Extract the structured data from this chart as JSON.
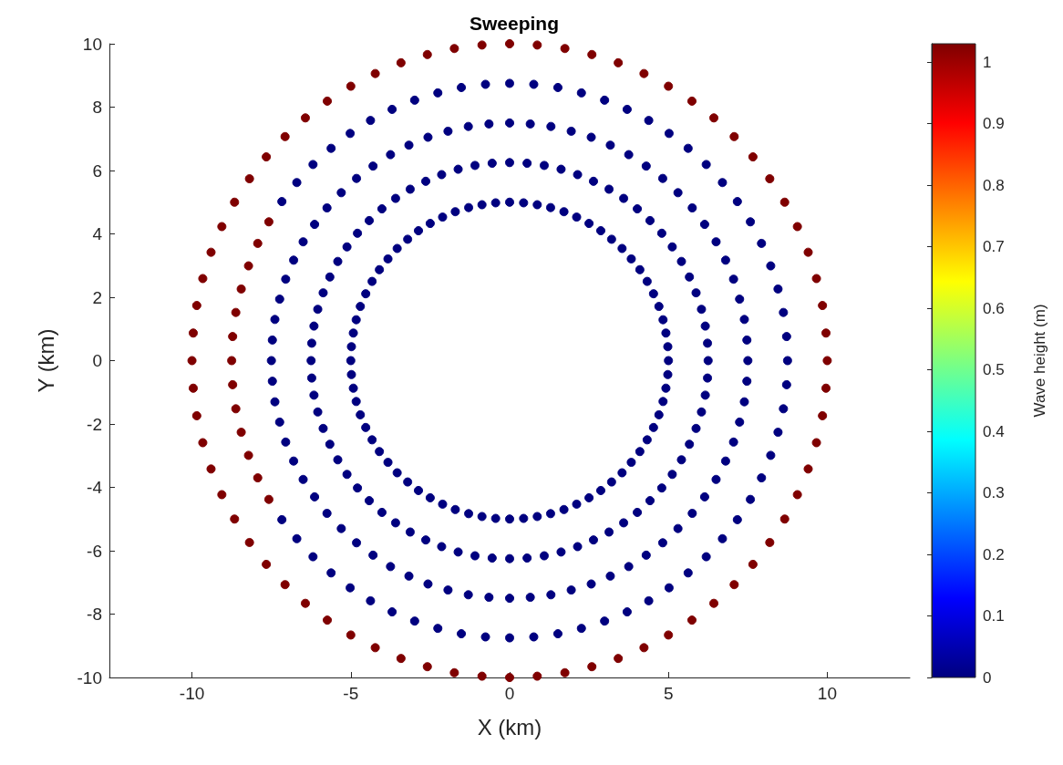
{
  "chart_data": {
    "type": "scatter",
    "title": "Sweeping",
    "xlabel": "X (km)",
    "ylabel": "Y (km)",
    "clabel": "Wave height (m)",
    "xlim": [
      -12.6,
      12.6
    ],
    "xticks": [
      -10,
      -5,
      0,
      5,
      10
    ],
    "ylim": [
      -10,
      10
    ],
    "yticks": [
      -10,
      -8,
      -6,
      -4,
      -2,
      0,
      2,
      4,
      6,
      8,
      10
    ],
    "clim": [
      0,
      1.03
    ],
    "cticks": [
      0,
      0.1,
      0.2,
      0.3,
      0.4,
      0.5,
      0.6,
      0.7,
      0.8,
      0.9,
      1
    ],
    "grid": false,
    "marker": "circle",
    "series": [
      {
        "x": [
          5,
          6.25,
          7.5,
          8.75,
          10
        ],
        "values": [
          0,
          0,
          0,
          0,
          0
        ],
        "cvalues": [
          0,
          0,
          0,
          0,
          1.03
        ],
        "colors": [
          "#00007f",
          "#00007f",
          "#00007f",
          "#00007f",
          "#7f0000"
        ]
      },
      {
        "x": [
          4.98,
          6.23,
          7.47,
          8.72,
          9.96
        ],
        "values": [
          0.44,
          0.55,
          0.65,
          0.76,
          0.87
        ],
        "cvalues": [
          0,
          0,
          0,
          0,
          1.03
        ],
        "colors": [
          "#00007f",
          "#00007f",
          "#00007f",
          "#00007f",
          "#7f0000"
        ]
      },
      {
        "x": [
          4.92,
          6.16,
          7.39,
          8.62,
          9.85
        ],
        "values": [
          0.87,
          1.09,
          1.3,
          1.52,
          1.74
        ],
        "cvalues": [
          0,
          0,
          0,
          0,
          1.03
        ],
        "colors": [
          "#00007f",
          "#00007f",
          "#00007f",
          "#00007f",
          "#7f0000"
        ]
      },
      {
        "x": [
          4.83,
          6.04,
          7.24,
          8.45,
          9.66
        ],
        "values": [
          1.29,
          1.62,
          1.94,
          2.26,
          2.59
        ],
        "cvalues": [
          0,
          0,
          0,
          0,
          1.03
        ],
        "colors": [
          "#00007f",
          "#00007f",
          "#00007f",
          "#00007f",
          "#7f0000"
        ]
      },
      {
        "x": [
          4.7,
          5.87,
          7.05,
          8.22,
          9.4
        ],
        "values": [
          1.71,
          2.14,
          2.57,
          2.99,
          3.42
        ],
        "cvalues": [
          0,
          0,
          0,
          0,
          1.03
        ],
        "colors": [
          "#00007f",
          "#00007f",
          "#00007f",
          "#00007f",
          "#7f0000"
        ]
      },
      {
        "x": [
          4.53,
          5.66,
          6.8,
          7.93,
          9.06
        ],
        "values": [
          2.11,
          2.64,
          3.17,
          3.7,
          4.23
        ],
        "cvalues": [
          0,
          0,
          0,
          0,
          1.03
        ],
        "colors": [
          "#00007f",
          "#00007f",
          "#00007f",
          "#00007f",
          "#7f0000"
        ]
      },
      {
        "x": [
          4.33,
          5.41,
          6.5,
          7.58,
          8.66
        ],
        "values": [
          2.5,
          3.13,
          3.75,
          4.38,
          5
        ],
        "cvalues": [
          0,
          0,
          0,
          0,
          1.03
        ],
        "colors": [
          "#00007f",
          "#00007f",
          "#00007f",
          "#00007f",
          "#7f0000"
        ]
      },
      {
        "x": [
          4.1,
          5.12,
          6.14,
          7.17,
          8.19
        ],
        "values": [
          2.87,
          3.59,
          4.3,
          5.02,
          5.74
        ],
        "cvalues": [
          0,
          0,
          0,
          0,
          1.03
        ],
        "colors": [
          "#00007f",
          "#00007f",
          "#00007f",
          "#00007f",
          "#7f0000"
        ]
      },
      {
        "x": [
          3.83,
          4.79,
          5.75,
          6.7,
          7.66
        ],
        "values": [
          3.21,
          4.02,
          4.82,
          5.62,
          6.43
        ],
        "cvalues": [
          0,
          0,
          0,
          0,
          1.03
        ],
        "colors": [
          "#00007f",
          "#00007f",
          "#00007f",
          "#00007f",
          "#7f0000"
        ]
      },
      {
        "x": [
          3.54,
          4.42,
          5.3,
          6.19,
          7.07
        ],
        "values": [
          3.54,
          4.42,
          5.3,
          6.19,
          7.07
        ],
        "cvalues": [
          0,
          0,
          0,
          0,
          1.03
        ],
        "colors": [
          "#00007f",
          "#00007f",
          "#00007f",
          "#00007f",
          "#7f0000"
        ]
      },
      {
        "x": [
          3.21,
          4.02,
          4.82,
          5.62,
          6.43
        ],
        "values": [
          3.83,
          4.79,
          5.75,
          6.7,
          7.66
        ],
        "cvalues": [
          0,
          0,
          0,
          0,
          1.03
        ],
        "colors": [
          "#00007f",
          "#00007f",
          "#00007f",
          "#00007f",
          "#7f0000"
        ]
      },
      {
        "x": [
          2.87,
          3.59,
          4.3,
          5.02,
          5.74
        ],
        "values": [
          4.1,
          5.12,
          6.14,
          7.17,
          8.19
        ],
        "cvalues": [
          0,
          0,
          0,
          0,
          1.03
        ],
        "colors": [
          "#00007f",
          "#00007f",
          "#00007f",
          "#00007f",
          "#7f0000"
        ]
      },
      {
        "x": [
          2.5,
          3.13,
          3.75,
          4.38,
          5
        ],
        "values": [
          4.33,
          5.41,
          6.5,
          7.58,
          8.66
        ],
        "cvalues": [
          0,
          0,
          0,
          0,
          1.03
        ],
        "colors": [
          "#00007f",
          "#00007f",
          "#00007f",
          "#00007f",
          "#7f0000"
        ]
      },
      {
        "x": [
          2.11,
          2.64,
          3.17,
          3.7,
          4.23
        ],
        "values": [
          4.53,
          5.66,
          6.8,
          7.93,
          9.06
        ],
        "cvalues": [
          0,
          0,
          0,
          0,
          1.03
        ],
        "colors": [
          "#00007f",
          "#00007f",
          "#00007f",
          "#00007f",
          "#7f0000"
        ]
      },
      {
        "x": [
          1.71,
          2.14,
          2.57,
          2.99,
          3.42
        ],
        "values": [
          4.7,
          5.87,
          7.05,
          8.22,
          9.4
        ],
        "cvalues": [
          0,
          0,
          0,
          0,
          1.03
        ],
        "colors": [
          "#00007f",
          "#00007f",
          "#00007f",
          "#00007f",
          "#7f0000"
        ]
      },
      {
        "x": [
          1.29,
          1.62,
          1.94,
          2.26,
          2.59
        ],
        "values": [
          4.83,
          6.04,
          7.24,
          8.45,
          9.66
        ],
        "cvalues": [
          0,
          0,
          0,
          0,
          1.03
        ],
        "colors": [
          "#00007f",
          "#00007f",
          "#00007f",
          "#00007f",
          "#7f0000"
        ]
      },
      {
        "x": [
          0.87,
          1.09,
          1.3,
          1.52,
          1.74
        ],
        "values": [
          4.92,
          6.16,
          7.39,
          8.62,
          9.85
        ],
        "cvalues": [
          0,
          0,
          0,
          0,
          1.03
        ],
        "colors": [
          "#00007f",
          "#00007f",
          "#00007f",
          "#00007f",
          "#7f0000"
        ]
      },
      {
        "x": [
          0.44,
          0.55,
          0.65,
          0.76,
          0.87
        ],
        "values": [
          4.98,
          6.23,
          7.47,
          8.72,
          9.96
        ],
        "cvalues": [
          0,
          0,
          0,
          0,
          1.03
        ],
        "colors": [
          "#00007f",
          "#00007f",
          "#00007f",
          "#00007f",
          "#7f0000"
        ]
      },
      {
        "x": [
          0,
          0,
          0,
          0,
          0
        ],
        "values": [
          5,
          6.25,
          7.5,
          8.75,
          10
        ],
        "cvalues": [
          0,
          0,
          0,
          0,
          1.03
        ],
        "colors": [
          "#00007f",
          "#00007f",
          "#00007f",
          "#00007f",
          "#7f0000"
        ]
      },
      {
        "x": [
          -0.44,
          -0.55,
          -0.65,
          -0.76,
          -0.87
        ],
        "values": [
          4.98,
          6.23,
          7.47,
          8.72,
          9.96
        ],
        "cvalues": [
          0,
          0,
          0,
          0,
          1.03
        ],
        "colors": [
          "#00007f",
          "#00007f",
          "#00007f",
          "#00007f",
          "#7f0000"
        ]
      },
      {
        "x": [
          -0.87,
          -1.09,
          -1.3,
          -1.52,
          -1.74
        ],
        "values": [
          4.92,
          6.16,
          7.39,
          8.62,
          9.85
        ],
        "cvalues": [
          0,
          0,
          0,
          0,
          1.03
        ],
        "colors": [
          "#00007f",
          "#00007f",
          "#00007f",
          "#00007f",
          "#7f0000"
        ]
      },
      {
        "x": [
          -1.29,
          -1.62,
          -1.94,
          -2.26,
          -2.59
        ],
        "values": [
          4.83,
          6.04,
          7.24,
          8.45,
          9.66
        ],
        "cvalues": [
          0,
          0,
          0,
          0,
          1.03
        ],
        "colors": [
          "#00007f",
          "#00007f",
          "#00007f",
          "#00007f",
          "#7f0000"
        ]
      },
      {
        "x": [
          -1.71,
          -2.14,
          -2.57,
          -2.99,
          -3.42
        ],
        "values": [
          4.7,
          5.87,
          7.05,
          8.22,
          9.4
        ],
        "cvalues": [
          0,
          0,
          0,
          0,
          1.03
        ],
        "colors": [
          "#00007f",
          "#00007f",
          "#00007f",
          "#00007f",
          "#7f0000"
        ]
      },
      {
        "x": [
          -2.11,
          -2.64,
          -3.17,
          -3.7,
          -4.23
        ],
        "values": [
          4.53,
          5.66,
          6.8,
          7.93,
          9.06
        ],
        "cvalues": [
          0,
          0,
          0,
          0,
          1.03
        ],
        "colors": [
          "#00007f",
          "#00007f",
          "#00007f",
          "#00007f",
          "#7f0000"
        ]
      },
      {
        "x": [
          -2.5,
          -3.13,
          -3.75,
          -4.38,
          -5
        ],
        "values": [
          4.33,
          5.41,
          6.5,
          7.58,
          8.66
        ],
        "cvalues": [
          0,
          0,
          0,
          0,
          1.03
        ],
        "colors": [
          "#00007f",
          "#00007f",
          "#00007f",
          "#00007f",
          "#7f0000"
        ]
      },
      {
        "x": [
          -2.87,
          -3.59,
          -4.3,
          -5.02,
          -5.74
        ],
        "values": [
          4.1,
          5.12,
          6.14,
          7.17,
          8.19
        ],
        "cvalues": [
          0,
          0,
          0,
          0,
          1.03
        ],
        "colors": [
          "#00007f",
          "#00007f",
          "#00007f",
          "#00007f",
          "#7f0000"
        ]
      },
      {
        "x": [
          -3.21,
          -4.02,
          -4.82,
          -5.62,
          -6.43
        ],
        "values": [
          3.83,
          4.79,
          5.75,
          6.7,
          7.66
        ],
        "cvalues": [
          0,
          0,
          0,
          0,
          1.03
        ],
        "colors": [
          "#00007f",
          "#00007f",
          "#00007f",
          "#00007f",
          "#7f0000"
        ]
      },
      {
        "x": [
          -3.54,
          -4.42,
          -5.3,
          -6.19,
          -7.07
        ],
        "values": [
          3.54,
          4.42,
          5.3,
          6.19,
          7.07
        ],
        "cvalues": [
          0,
          0,
          0,
          0,
          1.03
        ],
        "colors": [
          "#00007f",
          "#00007f",
          "#00007f",
          "#00007f",
          "#7f0000"
        ]
      },
      {
        "x": [
          -3.83,
          -4.79,
          -5.75,
          -6.7,
          -7.66
        ],
        "values": [
          3.21,
          4.02,
          4.82,
          5.62,
          6.43
        ],
        "cvalues": [
          0,
          0,
          0,
          0,
          1.03
        ],
        "colors": [
          "#00007f",
          "#00007f",
          "#00007f",
          "#00007f",
          "#7f0000"
        ]
      },
      {
        "x": [
          -4.1,
          -5.12,
          -6.14,
          -7.17,
          -8.19
        ],
        "values": [
          2.87,
          3.59,
          4.3,
          5.02,
          5.74
        ],
        "cvalues": [
          0,
          0,
          0,
          0,
          1.03
        ],
        "colors": [
          "#00007f",
          "#00007f",
          "#00007f",
          "#00007f",
          "#7f0000"
        ]
      },
      {
        "x": [
          -4.33,
          -5.41,
          -6.5,
          -7.58,
          -8.66
        ],
        "values": [
          2.5,
          3.13,
          3.75,
          4.38,
          5
        ],
        "cvalues": [
          0,
          0,
          0,
          1.03,
          1.03
        ],
        "colors": [
          "#00007f",
          "#00007f",
          "#00007f",
          "#7f0000",
          "#7f0000"
        ]
      },
      {
        "x": [
          -4.53,
          -5.66,
          -6.8,
          -7.93,
          -9.06
        ],
        "values": [
          2.11,
          2.64,
          3.17,
          3.7,
          4.23
        ],
        "cvalues": [
          0,
          0,
          0,
          1.03,
          1.03
        ],
        "colors": [
          "#00007f",
          "#00007f",
          "#00007f",
          "#7f0000",
          "#7f0000"
        ]
      },
      {
        "x": [
          -4.7,
          -5.87,
          -7.05,
          -8.22,
          -9.4
        ],
        "values": [
          1.71,
          2.14,
          2.57,
          2.99,
          3.42
        ],
        "cvalues": [
          0,
          0,
          0,
          1.03,
          1.03
        ],
        "colors": [
          "#00007f",
          "#00007f",
          "#00007f",
          "#7f0000",
          "#7f0000"
        ]
      },
      {
        "x": [
          -4.83,
          -6.04,
          -7.24,
          -8.45,
          -9.66
        ],
        "values": [
          1.29,
          1.62,
          1.94,
          2.26,
          2.59
        ],
        "cvalues": [
          0,
          0,
          0,
          1.03,
          1.03
        ],
        "colors": [
          "#00007f",
          "#00007f",
          "#00007f",
          "#7f0000",
          "#7f0000"
        ]
      },
      {
        "x": [
          -4.92,
          -6.16,
          -7.39,
          -8.62,
          -9.85
        ],
        "values": [
          0.87,
          1.09,
          1.3,
          1.52,
          1.74
        ],
        "cvalues": [
          0,
          0,
          0,
          1.03,
          1.03
        ],
        "colors": [
          "#00007f",
          "#00007f",
          "#00007f",
          "#7f0000",
          "#7f0000"
        ]
      },
      {
        "x": [
          -4.98,
          -6.23,
          -7.47,
          -8.72,
          -9.96
        ],
        "values": [
          0.44,
          0.55,
          0.65,
          0.76,
          0.87
        ],
        "cvalues": [
          0,
          0,
          0,
          1.03,
          1.03
        ],
        "colors": [
          "#00007f",
          "#00007f",
          "#00007f",
          "#7f0000",
          "#7f0000"
        ]
      },
      {
        "x": [
          -5,
          -6.25,
          -7.5,
          -8.75,
          -10
        ],
        "values": [
          0,
          0,
          0,
          0,
          0
        ],
        "cvalues": [
          0,
          0,
          0,
          1.03,
          1.03
        ],
        "colors": [
          "#00007f",
          "#00007f",
          "#00007f",
          "#7f0000",
          "#7f0000"
        ]
      },
      {
        "x": [
          -4.98,
          -6.23,
          -7.47,
          -8.72,
          -9.96
        ],
        "values": [
          -0.44,
          -0.55,
          -0.65,
          -0.76,
          -0.87
        ],
        "cvalues": [
          0,
          0,
          0,
          1.03,
          1.03
        ],
        "colors": [
          "#00007f",
          "#00007f",
          "#00007f",
          "#7f0000",
          "#7f0000"
        ]
      },
      {
        "x": [
          -4.92,
          -6.16,
          -7.39,
          -8.62,
          -9.85
        ],
        "values": [
          -0.87,
          -1.09,
          -1.3,
          -1.52,
          -1.74
        ],
        "cvalues": [
          0,
          0,
          0,
          1.03,
          1.03
        ],
        "colors": [
          "#00007f",
          "#00007f",
          "#00007f",
          "#7f0000",
          "#7f0000"
        ]
      },
      {
        "x": [
          -4.83,
          -6.04,
          -7.24,
          -8.45,
          -9.66
        ],
        "values": [
          -1.29,
          -1.62,
          -1.94,
          -2.26,
          -2.59
        ],
        "cvalues": [
          0,
          0,
          0,
          1.03,
          1.03
        ],
        "colors": [
          "#00007f",
          "#00007f",
          "#00007f",
          "#7f0000",
          "#7f0000"
        ]
      },
      {
        "x": [
          -4.7,
          -5.87,
          -7.05,
          -8.22,
          -9.4
        ],
        "values": [
          -1.71,
          -2.14,
          -2.57,
          -2.99,
          -3.42
        ],
        "cvalues": [
          0,
          0,
          0,
          1.03,
          1.03
        ],
        "colors": [
          "#00007f",
          "#00007f",
          "#00007f",
          "#7f0000",
          "#7f0000"
        ]
      },
      {
        "x": [
          -4.53,
          -5.66,
          -6.8,
          -7.93,
          -9.06
        ],
        "values": [
          -2.11,
          -2.64,
          -3.17,
          -3.7,
          -4.23
        ],
        "cvalues": [
          0,
          0,
          0,
          1.03,
          1.03
        ],
        "colors": [
          "#00007f",
          "#00007f",
          "#00007f",
          "#7f0000",
          "#7f0000"
        ]
      },
      {
        "x": [
          -4.33,
          -5.41,
          -6.5,
          -7.58,
          -8.66
        ],
        "values": [
          -2.5,
          -3.13,
          -3.75,
          -4.38,
          -5
        ],
        "cvalues": [
          0,
          0,
          0,
          1.03,
          1.03
        ],
        "colors": [
          "#00007f",
          "#00007f",
          "#00007f",
          "#7f0000",
          "#7f0000"
        ]
      },
      {
        "x": [
          -4.1,
          -5.12,
          -6.14,
          -7.17,
          -8.19
        ],
        "values": [
          -2.87,
          -3.59,
          -4.3,
          -5.02,
          -5.74
        ],
        "cvalues": [
          0,
          0,
          0,
          0,
          1.03
        ],
        "colors": [
          "#00007f",
          "#00007f",
          "#00007f",
          "#00007f",
          "#7f0000"
        ]
      },
      {
        "x": [
          -3.83,
          -4.79,
          -5.75,
          -6.7,
          -7.66
        ],
        "values": [
          -3.21,
          -4.02,
          -4.82,
          -5.62,
          -6.43
        ],
        "cvalues": [
          0,
          0,
          0,
          0,
          1.03
        ],
        "colors": [
          "#00007f",
          "#00007f",
          "#00007f",
          "#00007f",
          "#7f0000"
        ]
      },
      {
        "x": [
          -3.54,
          -4.42,
          -5.3,
          -6.19,
          -7.07
        ],
        "values": [
          -3.54,
          -4.42,
          -5.3,
          -6.19,
          -7.07
        ],
        "cvalues": [
          0,
          0,
          0,
          0,
          1.03
        ],
        "colors": [
          "#00007f",
          "#00007f",
          "#00007f",
          "#00007f",
          "#7f0000"
        ]
      },
      {
        "x": [
          -3.21,
          -4.02,
          -4.82,
          -5.62,
          -6.43
        ],
        "values": [
          -3.83,
          -4.79,
          -5.75,
          -6.7,
          -7.66
        ],
        "cvalues": [
          0,
          0,
          0,
          0,
          1.03
        ],
        "colors": [
          "#00007f",
          "#00007f",
          "#00007f",
          "#00007f",
          "#7f0000"
        ]
      },
      {
        "x": [
          -2.87,
          -3.59,
          -4.3,
          -5.02,
          -5.74
        ],
        "values": [
          -4.1,
          -5.12,
          -6.14,
          -7.17,
          -8.19
        ],
        "cvalues": [
          0,
          0,
          0,
          0,
          1.03
        ],
        "colors": [
          "#00007f",
          "#00007f",
          "#00007f",
          "#00007f",
          "#7f0000"
        ]
      },
      {
        "x": [
          -2.5,
          -3.13,
          -3.75,
          -4.38,
          -5
        ],
        "values": [
          -4.33,
          -5.41,
          -6.5,
          -7.58,
          -8.66
        ],
        "cvalues": [
          0,
          0,
          0,
          0,
          1.03
        ],
        "colors": [
          "#00007f",
          "#00007f",
          "#00007f",
          "#00007f",
          "#7f0000"
        ]
      },
      {
        "x": [
          -2.11,
          -2.64,
          -3.17,
          -3.7,
          -4.23
        ],
        "values": [
          -4.53,
          -5.66,
          -6.8,
          -7.93,
          -9.06
        ],
        "cvalues": [
          0,
          0,
          0,
          0,
          1.03
        ],
        "colors": [
          "#00007f",
          "#00007f",
          "#00007f",
          "#00007f",
          "#7f0000"
        ]
      },
      {
        "x": [
          -1.71,
          -2.14,
          -2.57,
          -2.99,
          -3.42
        ],
        "values": [
          -4.7,
          -5.87,
          -7.05,
          -8.22,
          -9.4
        ],
        "cvalues": [
          0,
          0,
          0,
          0,
          1.03
        ],
        "colors": [
          "#00007f",
          "#00007f",
          "#00007f",
          "#00007f",
          "#7f0000"
        ]
      },
      {
        "x": [
          -1.29,
          -1.62,
          -1.94,
          -2.26,
          -2.59
        ],
        "values": [
          -4.83,
          -6.04,
          -7.24,
          -8.45,
          -9.66
        ],
        "cvalues": [
          0,
          0,
          0,
          0,
          1.03
        ],
        "colors": [
          "#00007f",
          "#00007f",
          "#00007f",
          "#00007f",
          "#7f0000"
        ]
      },
      {
        "x": [
          -0.87,
          -1.09,
          -1.3,
          -1.52,
          -1.74
        ],
        "values": [
          -4.92,
          -6.16,
          -7.39,
          -8.62,
          -9.85
        ],
        "cvalues": [
          0,
          0,
          0,
          0,
          1.03
        ],
        "colors": [
          "#00007f",
          "#00007f",
          "#00007f",
          "#00007f",
          "#7f0000"
        ]
      },
      {
        "x": [
          -0.44,
          -0.55,
          -0.65,
          -0.76,
          -0.87
        ],
        "values": [
          -4.98,
          -6.23,
          -7.47,
          -8.72,
          -9.96
        ],
        "cvalues": [
          0,
          0,
          0,
          0,
          1.03
        ],
        "colors": [
          "#00007f",
          "#00007f",
          "#00007f",
          "#00007f",
          "#7f0000"
        ]
      },
      {
        "x": [
          0,
          0,
          0,
          0,
          0
        ],
        "values": [
          -5,
          -6.25,
          -7.5,
          -8.75,
          -10
        ],
        "cvalues": [
          0,
          0,
          0,
          0,
          1.03
        ],
        "colors": [
          "#00007f",
          "#00007f",
          "#00007f",
          "#00007f",
          "#7f0000"
        ]
      },
      {
        "x": [
          0.44,
          0.55,
          0.65,
          0.76,
          0.87
        ],
        "values": [
          -4.98,
          -6.23,
          -7.47,
          -8.72,
          -9.96
        ],
        "cvalues": [
          0,
          0,
          0,
          0,
          1.03
        ],
        "colors": [
          "#00007f",
          "#00007f",
          "#00007f",
          "#00007f",
          "#7f0000"
        ]
      },
      {
        "x": [
          0.87,
          1.09,
          1.3,
          1.52,
          1.74
        ],
        "values": [
          -4.92,
          -6.16,
          -7.39,
          -8.62,
          -9.85
        ],
        "cvalues": [
          0,
          0,
          0,
          0,
          1.03
        ],
        "colors": [
          "#00007f",
          "#00007f",
          "#00007f",
          "#00007f",
          "#7f0000"
        ]
      },
      {
        "x": [
          1.29,
          1.62,
          1.94,
          2.26,
          2.59
        ],
        "values": [
          -4.83,
          -6.04,
          -7.24,
          -8.45,
          -9.66
        ],
        "cvalues": [
          0,
          0,
          0,
          0,
          1.03
        ],
        "colors": [
          "#00007f",
          "#00007f",
          "#00007f",
          "#00007f",
          "#7f0000"
        ]
      },
      {
        "x": [
          1.71,
          2.14,
          2.57,
          2.99,
          3.42
        ],
        "values": [
          -4.7,
          -5.87,
          -7.05,
          -8.22,
          -9.4
        ],
        "cvalues": [
          0,
          0,
          0,
          0,
          1.03
        ],
        "colors": [
          "#00007f",
          "#00007f",
          "#00007f",
          "#00007f",
          "#7f0000"
        ]
      },
      {
        "x": [
          2.11,
          2.64,
          3.17,
          3.7,
          4.23
        ],
        "values": [
          -4.53,
          -5.66,
          -6.8,
          -7.93,
          -9.06
        ],
        "cvalues": [
          0,
          0,
          0,
          0,
          1.03
        ],
        "colors": [
          "#00007f",
          "#00007f",
          "#00007f",
          "#00007f",
          "#7f0000"
        ]
      },
      {
        "x": [
          2.5,
          3.13,
          3.75,
          4.38,
          5
        ],
        "values": [
          -4.33,
          -5.41,
          -6.5,
          -7.58,
          -8.66
        ],
        "cvalues": [
          0,
          0,
          0,
          0,
          1.03
        ],
        "colors": [
          "#00007f",
          "#00007f",
          "#00007f",
          "#00007f",
          "#7f0000"
        ]
      },
      {
        "x": [
          2.87,
          3.59,
          4.3,
          5.02,
          5.74
        ],
        "values": [
          -4.1,
          -5.12,
          -6.14,
          -7.17,
          -8.19
        ],
        "cvalues": [
          0,
          0,
          0,
          0,
          1.03
        ],
        "colors": [
          "#00007f",
          "#00007f",
          "#00007f",
          "#00007f",
          "#7f0000"
        ]
      },
      {
        "x": [
          3.21,
          4.02,
          4.82,
          5.62,
          6.43
        ],
        "values": [
          -3.83,
          -4.79,
          -5.75,
          -6.7,
          -7.66
        ],
        "cvalues": [
          0,
          0,
          0,
          0,
          1.03
        ],
        "colors": [
          "#00007f",
          "#00007f",
          "#00007f",
          "#00007f",
          "#7f0000"
        ]
      },
      {
        "x": [
          3.54,
          4.42,
          5.3,
          6.19,
          7.07
        ],
        "values": [
          -3.54,
          -4.42,
          -5.3,
          -6.19,
          -7.07
        ],
        "cvalues": [
          0,
          0,
          0,
          0,
          1.03
        ],
        "colors": [
          "#00007f",
          "#00007f",
          "#00007f",
          "#00007f",
          "#7f0000"
        ]
      },
      {
        "x": [
          3.83,
          4.79,
          5.75,
          6.7,
          7.66
        ],
        "values": [
          -3.21,
          -4.02,
          -4.82,
          -5.62,
          -6.43
        ],
        "cvalues": [
          0,
          0,
          0,
          0,
          1.03
        ],
        "colors": [
          "#00007f",
          "#00007f",
          "#00007f",
          "#00007f",
          "#7f0000"
        ]
      },
      {
        "x": [
          4.1,
          5.12,
          6.14,
          7.17,
          8.19
        ],
        "values": [
          -2.87,
          -3.59,
          -4.3,
          -5.02,
          -5.74
        ],
        "cvalues": [
          0,
          0,
          0,
          0,
          1.03
        ],
        "colors": [
          "#00007f",
          "#00007f",
          "#00007f",
          "#00007f",
          "#7f0000"
        ]
      },
      {
        "x": [
          4.33,
          5.41,
          6.5,
          7.58,
          8.66
        ],
        "values": [
          -2.5,
          -3.13,
          -3.75,
          -4.38,
          -5
        ],
        "cvalues": [
          0,
          0,
          0,
          0,
          1.03
        ],
        "colors": [
          "#00007f",
          "#00007f",
          "#00007f",
          "#00007f",
          "#7f0000"
        ]
      },
      {
        "x": [
          4.53,
          5.66,
          6.8,
          7.93,
          9.06
        ],
        "values": [
          -2.11,
          -2.64,
          -3.17,
          -3.7,
          -4.23
        ],
        "cvalues": [
          0,
          0,
          0,
          0,
          1.03
        ],
        "colors": [
          "#00007f",
          "#00007f",
          "#00007f",
          "#00007f",
          "#7f0000"
        ]
      },
      {
        "x": [
          4.7,
          5.87,
          7.05,
          8.22,
          9.4
        ],
        "values": [
          -1.71,
          -2.14,
          -2.57,
          -2.99,
          -3.42
        ],
        "cvalues": [
          0,
          0,
          0,
          0,
          1.03
        ],
        "colors": [
          "#00007f",
          "#00007f",
          "#00007f",
          "#00007f",
          "#7f0000"
        ]
      },
      {
        "x": [
          4.83,
          6.04,
          7.24,
          8.45,
          9.66
        ],
        "values": [
          -1.29,
          -1.62,
          -1.94,
          -2.26,
          -2.59
        ],
        "cvalues": [
          0,
          0,
          0,
          0,
          1.03
        ],
        "colors": [
          "#00007f",
          "#00007f",
          "#00007f",
          "#00007f",
          "#7f0000"
        ]
      },
      {
        "x": [
          4.92,
          6.16,
          7.39,
          8.62,
          9.85
        ],
        "values": [
          -0.87,
          -1.09,
          -1.3,
          -1.52,
          -1.74
        ],
        "cvalues": [
          0,
          0,
          0,
          0,
          1.03
        ],
        "colors": [
          "#00007f",
          "#00007f",
          "#00007f",
          "#00007f",
          "#7f0000"
        ]
      },
      {
        "x": [
          4.98,
          6.23,
          7.47,
          8.72,
          9.96
        ],
        "values": [
          -0.44,
          -0.55,
          -0.65,
          -0.76,
          -0.87
        ],
        "cvalues": [
          0,
          0,
          0,
          0,
          1.03
        ],
        "colors": [
          "#00007f",
          "#00007f",
          "#00007f",
          "#00007f",
          "#7f0000"
        ]
      }
    ]
  }
}
